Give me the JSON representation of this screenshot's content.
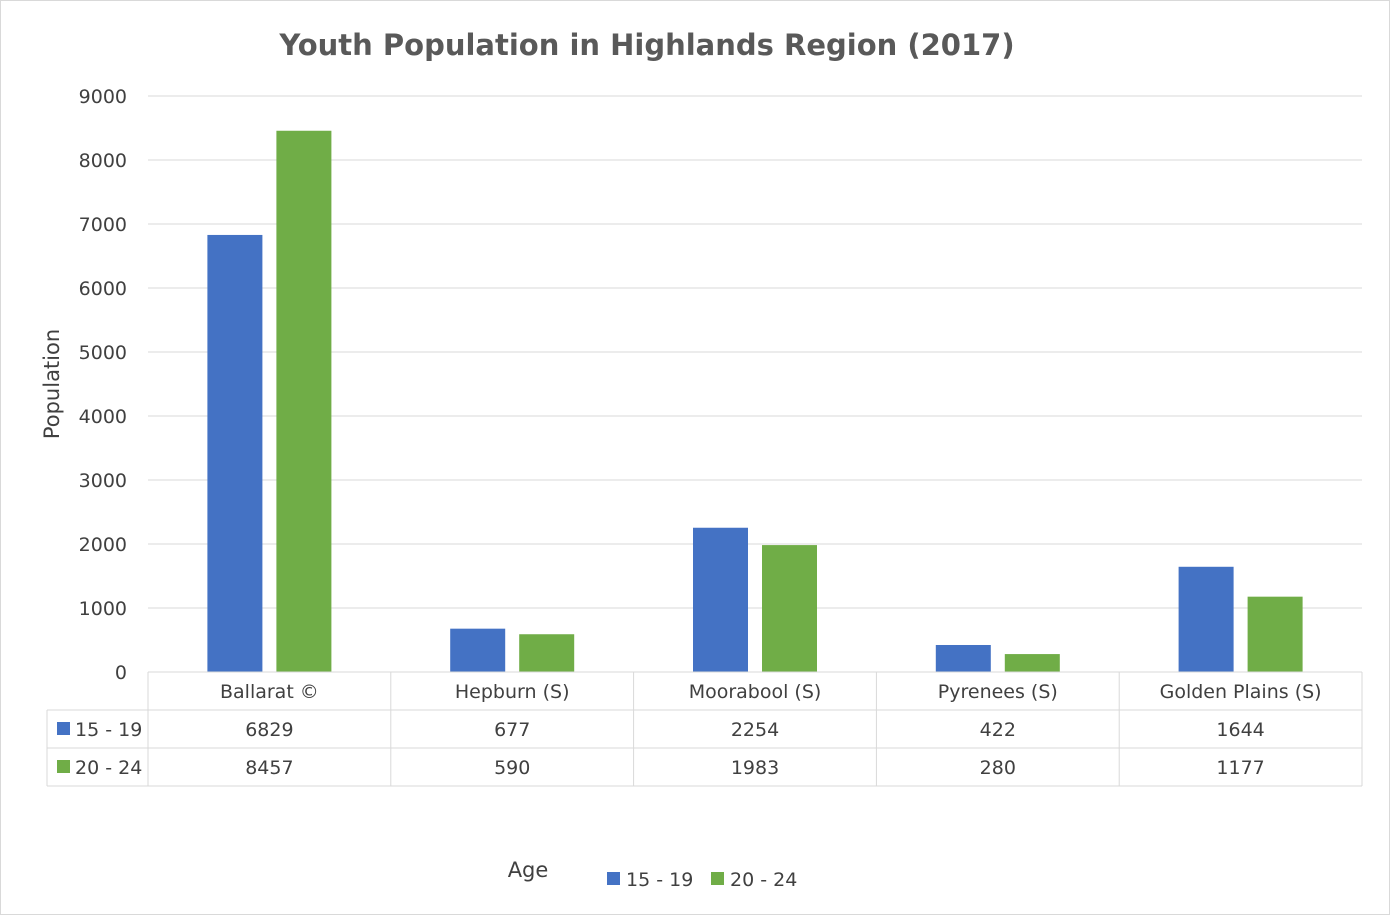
{
  "chart_data": {
    "type": "bar",
    "title": "Youth Population in Highlands Region (2017)",
    "ylabel": "Population",
    "xlabel": "Age",
    "ylim": [
      0,
      9000
    ],
    "yticks": [
      0,
      1000,
      2000,
      3000,
      4000,
      5000,
      6000,
      7000,
      8000,
      9000
    ],
    "grid": true,
    "legend_position": "bottom",
    "data_table": true,
    "categories": [
      "Ballarat ©",
      "Hepburn (S)",
      "Moorabool (S)",
      "Pyrenees (S)",
      "Golden Plains (S)"
    ],
    "series": [
      {
        "name": "15 - 19",
        "color": "#4472c4",
        "values": [
          6829,
          677,
          2254,
          422,
          1644
        ]
      },
      {
        "name": "20 - 24",
        "color": "#70ad47",
        "values": [
          8457,
          590,
          1983,
          280,
          1177
        ]
      }
    ]
  }
}
